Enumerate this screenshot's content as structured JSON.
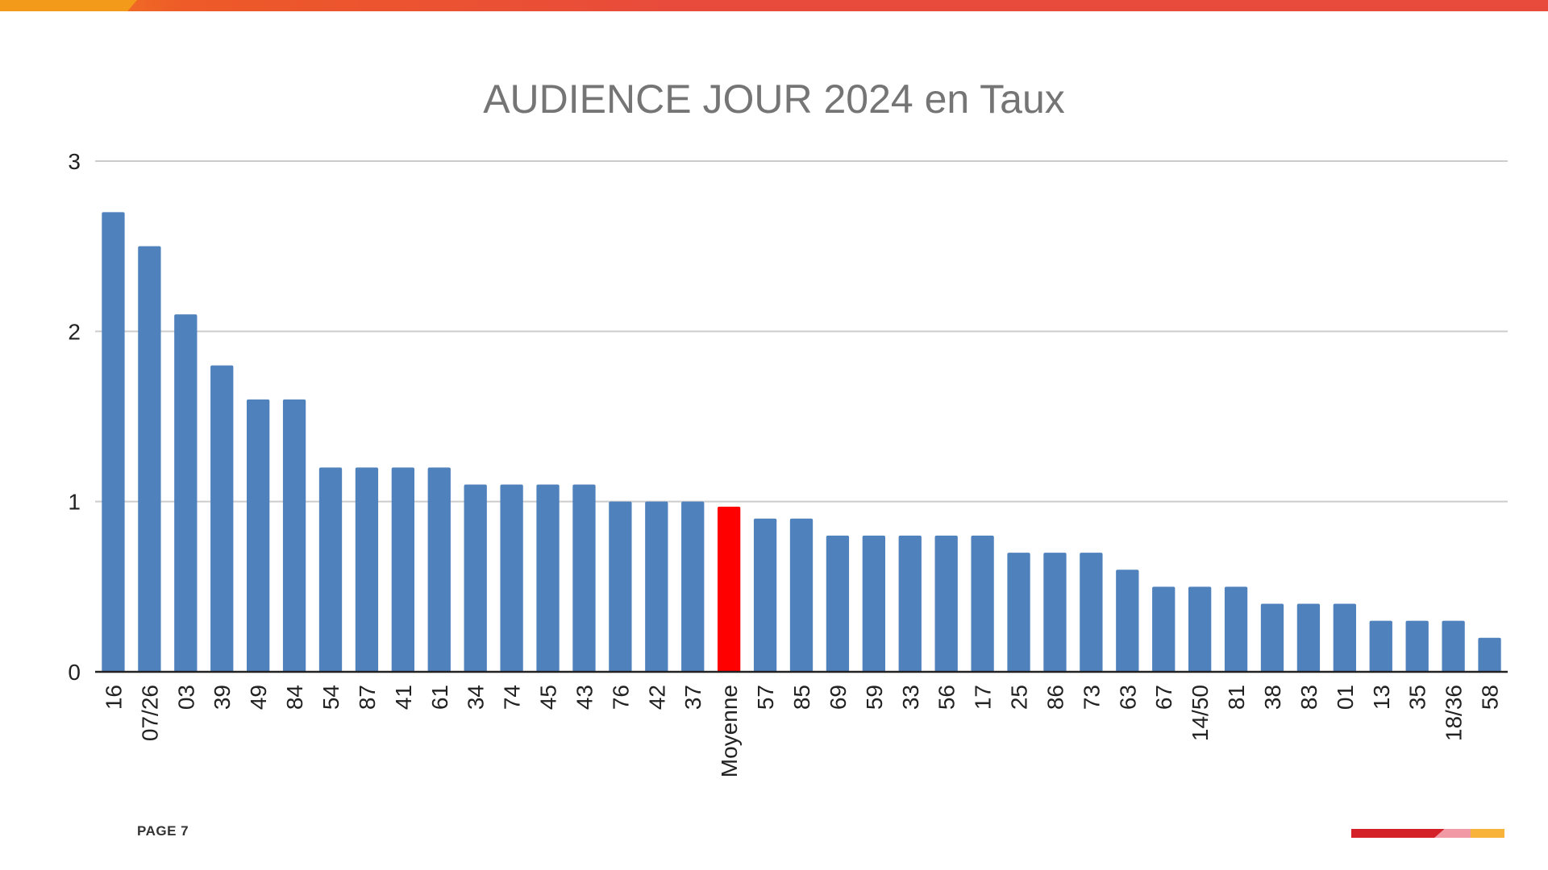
{
  "page": {
    "footer_label": "PAGE 7"
  },
  "colors": {
    "bar": "#4f81bd",
    "highlight": "#ff0000",
    "grid": "#cccccc",
    "axis": "#222222",
    "title": "#757575"
  },
  "chart_data": {
    "type": "bar",
    "title": "AUDIENCE JOUR 2024 en Taux",
    "xlabel": "",
    "ylabel": "",
    "ylim": [
      0,
      3
    ],
    "yticks": [
      0,
      1,
      2,
      3
    ],
    "grid": true,
    "legend": "none",
    "highlight_category": "Moyenne",
    "categories": [
      "16",
      "07/26",
      "03",
      "39",
      "49",
      "84",
      "54",
      "87",
      "41",
      "61",
      "34",
      "74",
      "45",
      "43",
      "76",
      "42",
      "37",
      "Moyenne",
      "57",
      "85",
      "69",
      "59",
      "33",
      "56",
      "17",
      "25",
      "86",
      "73",
      "63",
      "67",
      "14/50",
      "81",
      "38",
      "83",
      "01",
      "13",
      "35",
      "18/36",
      "58"
    ],
    "values": [
      2.7,
      2.5,
      2.1,
      1.8,
      1.6,
      1.6,
      1.2,
      1.2,
      1.2,
      1.2,
      1.1,
      1.1,
      1.1,
      1.1,
      1.0,
      1.0,
      1.0,
      0.97,
      0.9,
      0.9,
      0.8,
      0.8,
      0.8,
      0.8,
      0.8,
      0.7,
      0.7,
      0.7,
      0.6,
      0.5,
      0.5,
      0.5,
      0.4,
      0.4,
      0.4,
      0.3,
      0.3,
      0.3,
      0.2
    ]
  }
}
